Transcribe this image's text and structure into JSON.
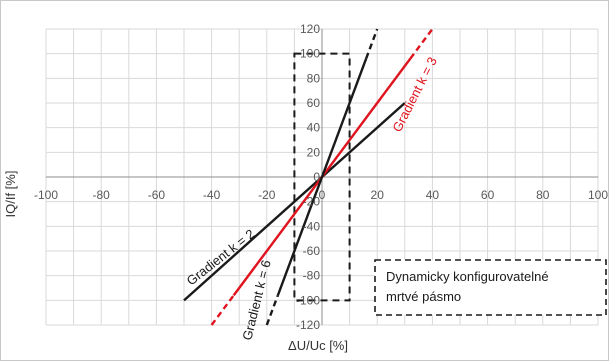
{
  "chart_data": {
    "type": "line",
    "xlabel": "ΔU/Uc [%]",
    "ylabel": "IQ/If [%]",
    "xlim": [
      -100,
      100
    ],
    "ylim": [
      -120,
      120
    ],
    "x_ticks": [
      -100,
      -80,
      -60,
      -40,
      -20,
      0,
      20,
      40,
      60,
      80,
      100
    ],
    "y_ticks": [
      -120,
      -100,
      -80,
      -60,
      -40,
      -20,
      0,
      20,
      40,
      60,
      80,
      100,
      120
    ],
    "x_tick_labels": [
      "-100",
      "-80",
      "-60",
      "-40",
      "-20",
      "0",
      "20",
      "40",
      "60",
      "80",
      "100"
    ],
    "y_tick_labels": [
      "-120",
      "-100",
      "-80",
      "-60",
      "-40",
      "-20",
      "0",
      "20",
      "40",
      "60",
      "80",
      "100",
      "120"
    ],
    "grid": true,
    "series": [
      {
        "key": "k2",
        "color": "#1a1a1a",
        "dashed_ends": false,
        "x": [
          -50,
          30
        ],
        "y": [
          -100,
          60
        ]
      },
      {
        "key": "k3",
        "color": "#e0141e",
        "dashed_ends": true,
        "x": [
          -40,
          40
        ],
        "y": [
          -120,
          120
        ]
      },
      {
        "key": "k6",
        "color": "#1a1a1a",
        "dashed_ends": true,
        "x": [
          -20,
          20
        ],
        "y": [
          -120,
          120
        ]
      }
    ],
    "deadband": {
      "x": [
        -10,
        10
      ],
      "y": [
        -100,
        100
      ],
      "style": "dashed"
    },
    "annotations": {
      "k2": "Gradient k = 2",
      "k3": "Gradient k = 3",
      "k6": "Gradient k = 6",
      "deadband_box": [
        "Dynamicky konfigurovatelné",
        "mrtvé pásmo"
      ]
    }
  }
}
